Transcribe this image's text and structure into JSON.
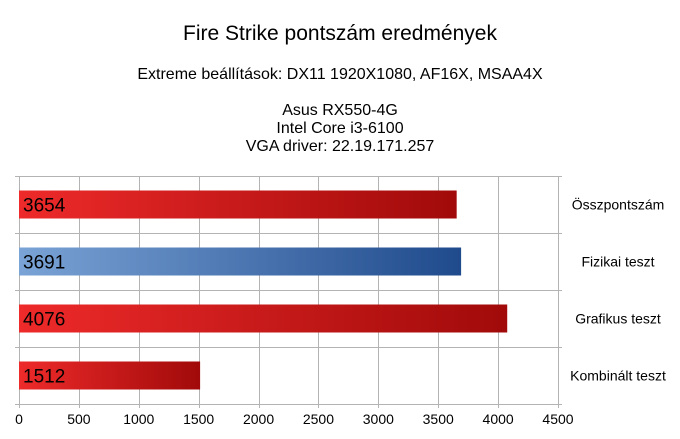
{
  "chart_data": {
    "type": "bar",
    "orientation": "horizontal",
    "title": "Fire Strike pontszám eredmények",
    "subtitle_lines": [
      "Extreme beállítások: DX11 1920X1080, AF16X, MSAA4X",
      "",
      "Asus RX550-4G",
      "Intel Core i3-6100",
      "VGA driver: 22.19.171.257"
    ],
    "categories": [
      "Összpontszám",
      "Fizikai teszt",
      "Grafikus teszt",
      "Kombinált teszt"
    ],
    "values": [
      3654,
      3691,
      4076,
      1512
    ],
    "bar_colors": [
      "#c0141b",
      "#3d6aa3",
      "#c0141b",
      "#c0141b"
    ],
    "xlim": [
      0,
      4500
    ],
    "x_ticks": [
      0,
      500,
      1000,
      1500,
      2000,
      2500,
      3000,
      3500,
      4000,
      4500
    ],
    "grid": true,
    "legend": "none",
    "data_labels": "inside-left"
  }
}
